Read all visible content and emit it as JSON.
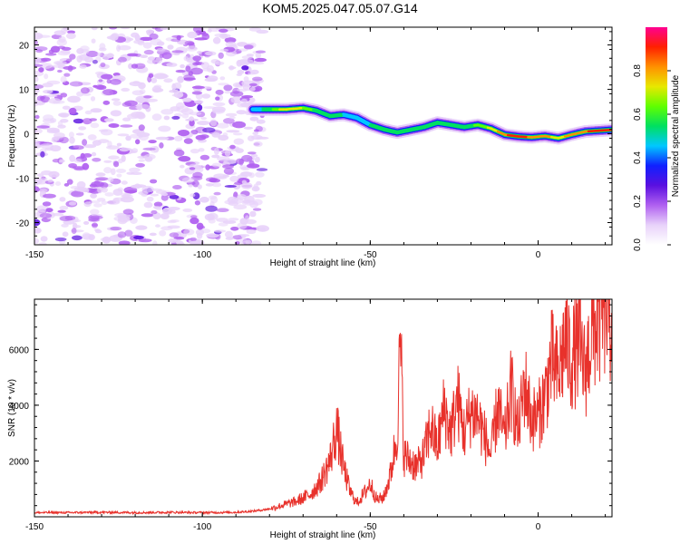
{
  "title": "KOM5.2025.047.05.07.G14",
  "chart_data": [
    {
      "type": "heatmap",
      "xlabel": "Height of straight line (km)",
      "ylabel": "Frequency (Hz)",
      "xlim": [
        -150,
        22
      ],
      "ylim": [
        -25,
        24
      ],
      "xticks": [
        "-150",
        "-100",
        "-50",
        "0"
      ],
      "xtick_values": [
        -150,
        -100,
        -50,
        0
      ],
      "yticks": [
        "-20",
        "-10",
        "0",
        "10",
        "20"
      ],
      "ytick_values": [
        -20,
        -10,
        0,
        10,
        20
      ],
      "noise_region_x": [
        -150,
        -82
      ],
      "ridge": {
        "x": [
          -85,
          -80,
          -75,
          -70,
          -66,
          -62,
          -58,
          -54,
          -50,
          -46,
          -42,
          -38,
          -34,
          -30,
          -26,
          -22,
          -18,
          -14,
          -10,
          -6,
          -2,
          2,
          6,
          10,
          14,
          18,
          22
        ],
        "frequency": [
          5.5,
          5.5,
          5.5,
          5.8,
          5.2,
          4.0,
          4.3,
          3.6,
          2.0,
          1.0,
          0.3,
          0.9,
          1.5,
          2.5,
          2.0,
          1.5,
          2.0,
          1.2,
          -0.2,
          -0.6,
          -0.8,
          -0.5,
          -1.0,
          -0.2,
          0.5,
          0.7,
          0.9
        ],
        "amplitude": [
          0.4,
          0.55,
          0.75,
          0.7,
          0.55,
          0.5,
          0.5,
          0.45,
          0.5,
          0.55,
          0.5,
          0.5,
          0.55,
          0.55,
          0.5,
          0.55,
          0.6,
          0.7,
          0.85,
          0.9,
          0.85,
          0.8,
          0.75,
          0.8,
          0.85,
          0.9,
          0.9
        ]
      },
      "colorbar": {
        "label": "Normalized spectral amplitude",
        "range": [
          0,
          1
        ],
        "ticks": [
          "0.0",
          "0.2",
          "0.4",
          "0.6",
          "0.8"
        ],
        "tick_values": [
          0.0,
          0.2,
          0.4,
          0.6,
          0.8
        ],
        "colors": [
          "#ffffff",
          "#e8d2fa",
          "#b060f0",
          "#5a10e0",
          "#1020ff",
          "#00c8ff",
          "#00e060",
          "#60ff00",
          "#e8e800",
          "#ff9000",
          "#ff2000",
          "#ff0090"
        ]
      }
    },
    {
      "type": "line",
      "xlabel": "Height of straight line (km)",
      "ylabel": "SNR (10 * v/v)",
      "xlim": [
        -150,
        22
      ],
      "ylim": [
        0,
        7800
      ],
      "xticks": [
        "-150",
        "-100",
        "-50",
        "0"
      ],
      "xtick_values": [
        -150,
        -100,
        -50,
        0
      ],
      "yticks": [
        "2000",
        "4000",
        "6000"
      ],
      "ytick_values": [
        2000,
        4000,
        6000
      ],
      "color": "#e8312b",
      "series": [
        {
          "x": [
            -150,
            -140,
            -130,
            -120,
            -110,
            -100,
            -90,
            -85,
            -80,
            -76,
            -72,
            -68,
            -65,
            -62,
            -60,
            -58,
            -56,
            -54,
            -52,
            -50,
            -48,
            -46,
            -44,
            -42,
            -41,
            -40,
            -38,
            -36,
            -34,
            -32,
            -30,
            -28,
            -26,
            -24,
            -22,
            -20,
            -18,
            -16,
            -14,
            -12,
            -10,
            -8,
            -6,
            -4,
            -2,
            0,
            2,
            4,
            6,
            8,
            10,
            12,
            14,
            16,
            18,
            20,
            22
          ],
          "values": [
            150,
            150,
            160,
            150,
            160,
            150,
            160,
            200,
            280,
            420,
            550,
            800,
            1200,
            2000,
            3200,
            1800,
            900,
            500,
            800,
            1200,
            600,
            700,
            1500,
            3000,
            6300,
            2200,
            2000,
            1800,
            2200,
            3300,
            2500,
            3900,
            3000,
            4200,
            3000,
            3800,
            3600,
            2900,
            2200,
            4000,
            2800,
            4600,
            3000,
            4800,
            3500,
            3600,
            4300,
            5600,
            5000,
            6400,
            5600,
            6200,
            5200,
            6600,
            7000,
            7500,
            7000
          ]
        }
      ]
    }
  ]
}
